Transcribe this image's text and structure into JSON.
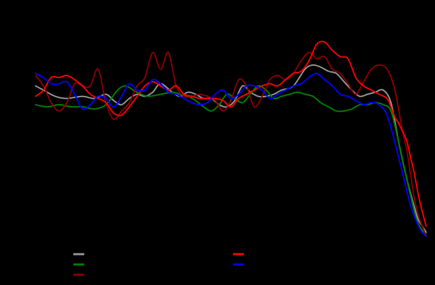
{
  "chart_data": {
    "type": "line",
    "title": "",
    "xlabel": "",
    "ylabel": "",
    "grid": false,
    "legend_position": "bottom",
    "background": "#000000",
    "xlim": [
      0,
      100
    ],
    "ylim": [
      0,
      100
    ],
    "series": [
      {
        "color": "#999999",
        "x": [
          0,
          2,
          5,
          8,
          12,
          15,
          18,
          20,
          22,
          24,
          26,
          28,
          30,
          32,
          35,
          37,
          39,
          41,
          43,
          45,
          47,
          49,
          51,
          53,
          55,
          57,
          59,
          61,
          63,
          66,
          69,
          71,
          73,
          75,
          77,
          79,
          81,
          83,
          85,
          87,
          89,
          91,
          93,
          95,
          97,
          98,
          99,
          100
        ],
        "y": [
          72,
          70,
          67,
          66,
          67,
          66,
          68,
          65,
          63,
          66,
          68,
          67,
          69,
          73,
          69,
          67,
          69,
          68,
          66,
          66,
          63,
          62,
          65,
          72,
          69,
          67,
          67,
          68,
          70,
          72,
          80,
          82,
          81,
          79,
          78,
          74,
          70,
          67,
          68,
          69,
          70,
          64,
          45,
          28,
          14,
          8,
          5,
          2
        ]
      },
      {
        "color": "#008000",
        "x": [
          0,
          3,
          6,
          9,
          12,
          15,
          18,
          21,
          23,
          25,
          27,
          29,
          32,
          35,
          37,
          39,
          41,
          43,
          45,
          47,
          49,
          51,
          53,
          55,
          57,
          59,
          61,
          63,
          65,
          67,
          69,
          71,
          73,
          75,
          77,
          79,
          81,
          83,
          85,
          87,
          89,
          91,
          93,
          95,
          97,
          98,
          99,
          100
        ],
        "y": [
          63,
          62,
          63,
          62,
          62,
          61,
          63,
          70,
          72,
          70,
          68,
          67,
          68,
          69,
          68,
          67,
          65,
          62,
          60,
          63,
          68,
          66,
          64,
          68,
          72,
          70,
          66,
          67,
          68,
          69,
          68,
          67,
          64,
          62,
          60,
          60,
          61,
          63,
          63,
          64,
          63,
          60,
          45,
          28,
          12,
          6,
          3,
          1
        ]
      },
      {
        "color": "#8b0000",
        "x": [
          0,
          2,
          4,
          6,
          8,
          10,
          12,
          14,
          16,
          18,
          20,
          22,
          24,
          26,
          28,
          30,
          32,
          34,
          36,
          38,
          40,
          42,
          44,
          46,
          48,
          50,
          52,
          54,
          56,
          58,
          60,
          62,
          64,
          66,
          68,
          70,
          72,
          74,
          76,
          78,
          80,
          82,
          84,
          86,
          88,
          90,
          92,
          94,
          95,
          96,
          97,
          98,
          99,
          100
        ],
        "y": [
          77,
          72,
          64,
          60,
          64,
          73,
          72,
          72,
          80,
          64,
          56,
          60,
          64,
          72,
          76,
          88,
          80,
          88,
          72,
          67,
          67,
          68,
          67,
          65,
          60,
          65,
          75,
          72,
          62,
          67,
          75,
          77,
          75,
          78,
          84,
          88,
          85,
          86,
          80,
          78,
          73,
          68,
          74,
          80,
          82,
          80,
          70,
          50,
          42,
          30,
          18,
          10,
          5,
          0
        ]
      },
      {
        "color": "#ff0000",
        "x": [
          0,
          2,
          4,
          6,
          8,
          10,
          12,
          14,
          16,
          18,
          20,
          22,
          24,
          26,
          28,
          30,
          32,
          34,
          36,
          38,
          40,
          42,
          44,
          46,
          48,
          50,
          52,
          54,
          56,
          58,
          60,
          62,
          64,
          66,
          68,
          70,
          72,
          74,
          76,
          78,
          80,
          82,
          84,
          86,
          88,
          90,
          91,
          92,
          93,
          94,
          95,
          96,
          97,
          98,
          99,
          100
        ],
        "y": [
          67,
          70,
          76,
          76,
          77,
          75,
          72,
          68,
          66,
          64,
          59,
          58,
          62,
          67,
          72,
          74,
          72,
          70,
          72,
          68,
          67,
          66,
          66,
          66,
          65,
          62,
          66,
          68,
          70,
          72,
          73,
          72,
          75,
          78,
          79,
          84,
          92,
          93,
          89,
          86,
          85,
          76,
          72,
          70,
          68,
          66,
          62,
          57,
          54,
          50,
          46,
          38,
          30,
          20,
          12,
          5
        ]
      },
      {
        "color": "#0000ff",
        "x": [
          0,
          2,
          4,
          6,
          8,
          10,
          12,
          14,
          16,
          18,
          20,
          22,
          24,
          26,
          28,
          30,
          32,
          34,
          36,
          38,
          40,
          42,
          44,
          46,
          48,
          50,
          52,
          54,
          56,
          58,
          60,
          62,
          64,
          66,
          68,
          70,
          72,
          74,
          76,
          78,
          80,
          82,
          84,
          86,
          88,
          90,
          92,
          94,
          96,
          98,
          99,
          100
        ],
        "y": [
          78,
          76,
          73,
          73,
          74,
          68,
          61,
          63,
          67,
          66,
          62,
          67,
          73,
          70,
          70,
          75,
          73,
          69,
          68,
          66,
          64,
          63,
          64,
          68,
          70,
          66,
          68,
          72,
          72,
          70,
          66,
          68,
          70,
          72,
          73,
          76,
          78,
          75,
          72,
          68,
          67,
          65,
          63,
          64,
          63,
          58,
          45,
          30,
          15,
          5,
          2,
          0
        ]
      }
    ]
  }
}
